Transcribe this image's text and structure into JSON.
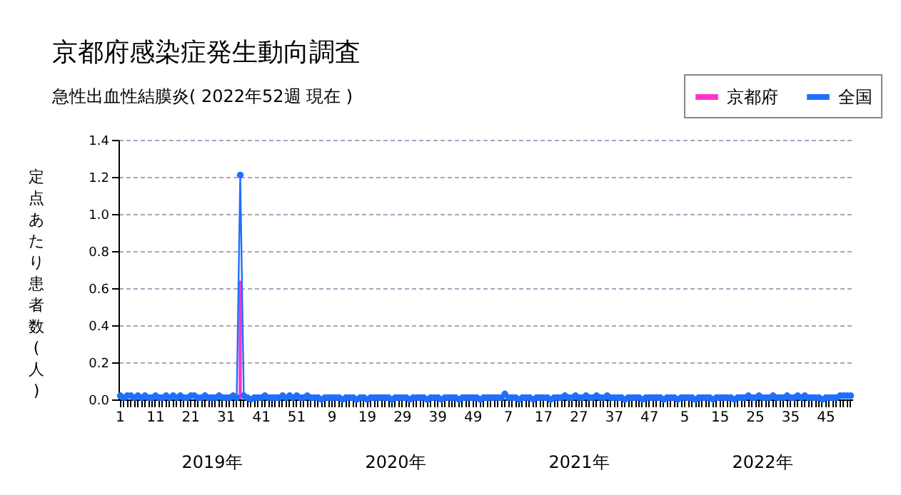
{
  "chart_data": {
    "type": "bar",
    "title": "京都府感染症発生動向調査",
    "subtitle": "急性出血性結膜炎( 2022年52週 現在 )",
    "ylabel": "定点あたり患者数(人)",
    "annotations": [
      "2019年",
      "2020年",
      "2021年",
      "2022年"
    ],
    "categories": [
      "1",
      null,
      null,
      null,
      null,
      null,
      null,
      null,
      null,
      null,
      "11",
      null,
      null,
      null,
      null,
      null,
      null,
      null,
      null,
      null,
      "21",
      null,
      null,
      null,
      null,
      null,
      null,
      null,
      null,
      null,
      "31",
      null,
      null,
      null,
      null,
      null,
      null,
      null,
      null,
      null,
      "41",
      null,
      null,
      null,
      null,
      null,
      null,
      null,
      null,
      null,
      "51",
      null,
      null,
      null,
      null,
      null,
      null,
      null,
      null,
      null,
      "9",
      null,
      null,
      null,
      null,
      null,
      null,
      null,
      null,
      null,
      "19",
      null,
      null,
      null,
      null,
      null,
      null,
      null,
      null,
      null,
      "29",
      null,
      null,
      null,
      null,
      null,
      null,
      null,
      null,
      null,
      "39",
      null,
      null,
      null,
      null,
      null,
      null,
      null,
      null,
      null,
      "49",
      null,
      null,
      null,
      null,
      null,
      null,
      null,
      null,
      null,
      "7",
      null,
      null,
      null,
      null,
      null,
      null,
      null,
      null,
      null,
      "17",
      null,
      null,
      null,
      null,
      null,
      null,
      null,
      null,
      null,
      "27",
      null,
      null,
      null,
      null,
      null,
      null,
      null,
      null,
      null,
      "37",
      null,
      null,
      null,
      null,
      null,
      null,
      null,
      null,
      null,
      "47",
      null,
      null,
      null,
      null,
      null,
      null,
      null,
      null,
      null,
      "5",
      null,
      null,
      null,
      null,
      null,
      null,
      null,
      null,
      null,
      "15",
      null,
      null,
      null,
      null,
      null,
      null,
      null,
      null,
      null,
      "25",
      null,
      null,
      null,
      null,
      null,
      null,
      null,
      null,
      null,
      "35",
      null,
      null,
      null,
      null,
      null,
      null,
      null,
      null,
      null,
      "45",
      null,
      null,
      null,
      null,
      null,
      null,
      null
    ],
    "series": [
      {
        "name": "京都府",
        "type": "bar",
        "color": "#ff33cc",
        "values": [
          0,
          0,
          0,
          0,
          0,
          0,
          0,
          0,
          0,
          0,
          0,
          0,
          0,
          0,
          0,
          0,
          0,
          0,
          0,
          0,
          0,
          0,
          0,
          0,
          0,
          0,
          0,
          0,
          0,
          0,
          0,
          0,
          0,
          0,
          0.64,
          0,
          0,
          0,
          0,
          0,
          0,
          0,
          0,
          0,
          0,
          0,
          0,
          0,
          0,
          0,
          null,
          0,
          0,
          0,
          0,
          0,
          0,
          0,
          0,
          0,
          0,
          0,
          0,
          0,
          0,
          0,
          0,
          0,
          0,
          0,
          0,
          0,
          0,
          0,
          0,
          0,
          0,
          0,
          0,
          0,
          0,
          0,
          0,
          0,
          0,
          0,
          0,
          0,
          0,
          0,
          0,
          0,
          0,
          0,
          0,
          0,
          0,
          0,
          0,
          0,
          0,
          0,
          0,
          0,
          0,
          0,
          0,
          0,
          0,
          0,
          0,
          0,
          0,
          0,
          0,
          0,
          0,
          0,
          0,
          0,
          0,
          0,
          0,
          0,
          0,
          0,
          0,
          0,
          0,
          0,
          0,
          0,
          0,
          0,
          0,
          0,
          0,
          0,
          0,
          0,
          0,
          0,
          0,
          0,
          0,
          0,
          0,
          0,
          0,
          0,
          0,
          0,
          0,
          0,
          0,
          0,
          0,
          0,
          0,
          0,
          0,
          0,
          0,
          0,
          0,
          0,
          0,
          0,
          0,
          0,
          0,
          0,
          0,
          0,
          0,
          0,
          0,
          0,
          0,
          0,
          0,
          0,
          0,
          0,
          0,
          0,
          0,
          0,
          0,
          0,
          0,
          0,
          0,
          0,
          0,
          0,
          0,
          0,
          0,
          0,
          0,
          0,
          0,
          0,
          0,
          0,
          0,
          0
        ]
      },
      {
        "name": "全国",
        "type": "line",
        "color": "#1e6fff",
        "values": [
          0.02,
          0.01,
          0.02,
          0.02,
          0.01,
          0.02,
          0.01,
          0.02,
          0.01,
          0.01,
          0.02,
          0.01,
          0.01,
          0.02,
          0.01,
          0.02,
          0.01,
          0.02,
          0.01,
          0.01,
          0.02,
          0.02,
          0.01,
          0.01,
          0.02,
          0.01,
          0.01,
          0.01,
          0.02,
          0.01,
          0.01,
          0.01,
          0.02,
          0.01,
          1.21,
          0.02,
          0.01,
          0.0,
          0.01,
          0.01,
          0.01,
          0.02,
          0.01,
          0.01,
          0.01,
          0.01,
          0.02,
          0.01,
          0.02,
          0.01,
          0.02,
          0.01,
          0.01,
          0.02,
          0.01,
          0.01,
          0.01,
          0.0,
          0.01,
          0.01,
          0.01,
          0.01,
          0.01,
          0.0,
          0.01,
          0.01,
          0.01,
          0.0,
          0.01,
          0.01,
          0.0,
          0.01,
          0.01,
          0.01,
          0.01,
          0.01,
          0.01,
          0.0,
          0.01,
          0.01,
          0.01,
          0.01,
          0.0,
          0.01,
          0.01,
          0.01,
          0.01,
          0.0,
          0.01,
          0.01,
          0.01,
          0.0,
          0.01,
          0.01,
          0.01,
          0.01,
          0.0,
          0.01,
          0.01,
          0.01,
          0.01,
          0.01,
          0.0,
          0.01,
          0.01,
          0.01,
          0.01,
          0.01,
          0.01,
          0.03,
          0.01,
          0.01,
          0.01,
          0.0,
          0.01,
          0.01,
          0.01,
          0.0,
          0.01,
          0.01,
          0.01,
          0.01,
          0.0,
          0.01,
          0.01,
          0.01,
          0.02,
          0.01,
          0.01,
          0.02,
          0.01,
          0.01,
          0.02,
          0.01,
          0.01,
          0.02,
          0.01,
          0.01,
          0.02,
          0.01,
          0.01,
          0.01,
          0.01,
          0.0,
          0.01,
          0.01,
          0.01,
          0.01,
          0.0,
          0.01,
          0.01,
          0.01,
          0.01,
          0.01,
          0.0,
          0.01,
          0.01,
          0.01,
          0.0,
          0.01,
          0.01,
          0.01,
          0.01,
          0.0,
          0.01,
          0.01,
          0.01,
          0.01,
          0.0,
          0.01,
          0.01,
          0.01,
          0.01,
          0.01,
          0.0,
          0.01,
          0.01,
          0.01,
          0.02,
          0.01,
          0.01,
          0.02,
          0.01,
          0.01,
          0.01,
          0.02,
          0.01,
          0.01,
          0.01,
          0.02,
          0.01,
          0.01,
          0.02,
          0.01,
          0.02,
          0.01,
          0.01,
          0.01,
          0.01,
          0.0,
          0.01,
          0.01,
          0.01,
          0.01,
          0.02,
          0.02,
          0.02,
          0.02
        ]
      }
    ],
    "ylim": [
      0,
      1.4
    ],
    "yticks": [
      {
        "value": 0,
        "label": "0.0"
      },
      {
        "value": 0.2,
        "label": "0.2"
      },
      {
        "value": 0.4,
        "label": "0.4"
      },
      {
        "value": 0.6,
        "label": "0.6"
      },
      {
        "value": 0.8,
        "label": "0.8"
      },
      {
        "value": 1,
        "label": "1.0"
      },
      {
        "value": 1.2,
        "label": "1.2"
      },
      {
        "value": 1.4,
        "label": "1.4"
      }
    ],
    "grid": "y",
    "legend": "top right",
    "marker": "circle",
    "line_style": "solid"
  }
}
